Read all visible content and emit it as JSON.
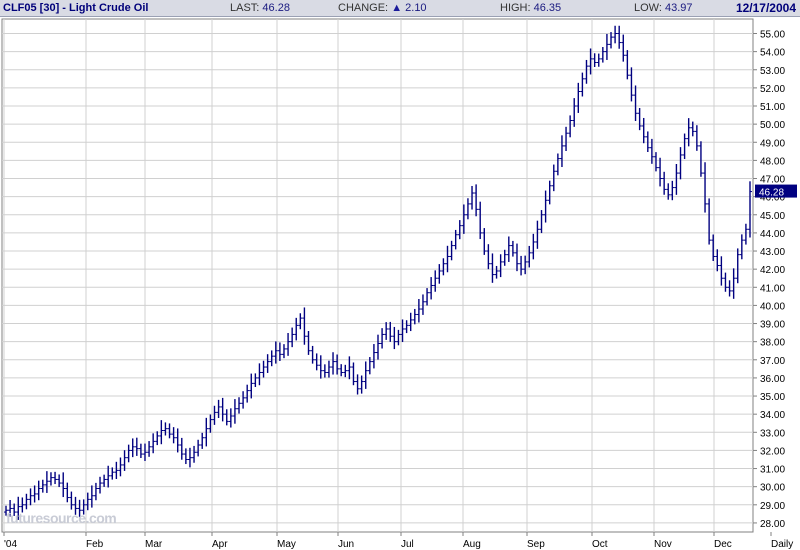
{
  "header": {
    "title": "CLF05 [30] - Light Crude Oil",
    "last_label": "LAST:",
    "last_value": "46.28",
    "change_label": "CHANGE:",
    "change_value": "2.10",
    "change_icon": "up-triangle-icon",
    "high_label": "HIGH:",
    "high_value": "46.35",
    "low_label": "LOW:",
    "low_value": "43.97",
    "date": "12/17/2004"
  },
  "watermark": "futuresource.com",
  "chart_data": {
    "type": "ohlc",
    "ylim": [
      27.5,
      55.8
    ],
    "y_ticks": [
      "28.00",
      "29.00",
      "30.00",
      "31.00",
      "32.00",
      "33.00",
      "34.00",
      "35.00",
      "36.00",
      "37.00",
      "38.00",
      "39.00",
      "40.00",
      "41.00",
      "42.00",
      "43.00",
      "44.00",
      "45.00",
      "46.00",
      "47.00",
      "48.00",
      "49.00",
      "50.00",
      "51.00",
      "52.00",
      "53.00",
      "54.00",
      "55.00"
    ],
    "x_ticks": [
      "'04",
      "Feb",
      "Mar",
      "Apr",
      "May",
      "Jun",
      "Jul",
      "Aug",
      "Sep",
      "Oct",
      "Nov",
      "Dec",
      "Daily"
    ],
    "last_marker": "46.28",
    "grid": true,
    "colors": {
      "series": "#000080",
      "grid": "#d0d0d0",
      "axis": "#808080",
      "label_bg": "#000080"
    },
    "series": [
      {
        "x_start": "2004-01-02",
        "x_end": "2004-12-17",
        "values": [
          28.7,
          28.8,
          28.6,
          28.9,
          29.0,
          29.3,
          29.5,
          29.6,
          29.9,
          30.1,
          30.3,
          30.5,
          30.4,
          30.2,
          29.9,
          29.4,
          29.0,
          28.8,
          28.7,
          29.0,
          29.3,
          29.5,
          29.9,
          30.2,
          30.4,
          30.6,
          30.8,
          30.9,
          31.2,
          31.6,
          32.0,
          32.2,
          32.1,
          31.8,
          31.9,
          32.2,
          32.5,
          32.8,
          33.1,
          33.2,
          32.9,
          32.7,
          32.3,
          31.8,
          31.5,
          31.6,
          31.9,
          32.3,
          32.7,
          33.2,
          33.7,
          34.1,
          34.4,
          34.0,
          33.6,
          33.9,
          34.3,
          34.6,
          34.9,
          35.3,
          35.7,
          36.0,
          36.3,
          36.6,
          36.9,
          37.2,
          37.5,
          37.3,
          37.6,
          38.0,
          38.4,
          38.9,
          39.3,
          38.3,
          37.5,
          37.0,
          36.7,
          36.4,
          36.3,
          36.6,
          36.9,
          36.5,
          36.3,
          36.4,
          36.6,
          35.8,
          35.4,
          35.8,
          36.4,
          36.9,
          37.4,
          37.9,
          38.4,
          38.7,
          38.3,
          38.0,
          38.4,
          38.7,
          38.9,
          39.2,
          39.5,
          39.8,
          40.2,
          40.7,
          41.1,
          41.5,
          41.9,
          42.3,
          42.7,
          43.3,
          43.9,
          44.4,
          45.0,
          45.6,
          46.2,
          45.3,
          44.0,
          43.0,
          42.3,
          41.7,
          41.9,
          42.4,
          42.8,
          43.3,
          42.9,
          42.3,
          42.0,
          42.4,
          42.9,
          43.5,
          44.2,
          45.0,
          45.8,
          46.6,
          47.4,
          48.1,
          48.8,
          49.5,
          50.2,
          51.0,
          51.8,
          52.5,
          53.2,
          53.6,
          53.4,
          53.6,
          54.0,
          54.4,
          54.8,
          55.0,
          54.5,
          53.8,
          52.7,
          51.6,
          50.6,
          49.9,
          49.3,
          48.7,
          48.2,
          47.6,
          47.0,
          46.4,
          46.1,
          46.5,
          47.3,
          48.3,
          49.2,
          49.8,
          49.6,
          48.8,
          47.3,
          45.6,
          43.6,
          42.7,
          42.2,
          41.5,
          41.0,
          40.8,
          41.5,
          42.8,
          43.6,
          44.2,
          46.28
        ]
      }
    ]
  }
}
